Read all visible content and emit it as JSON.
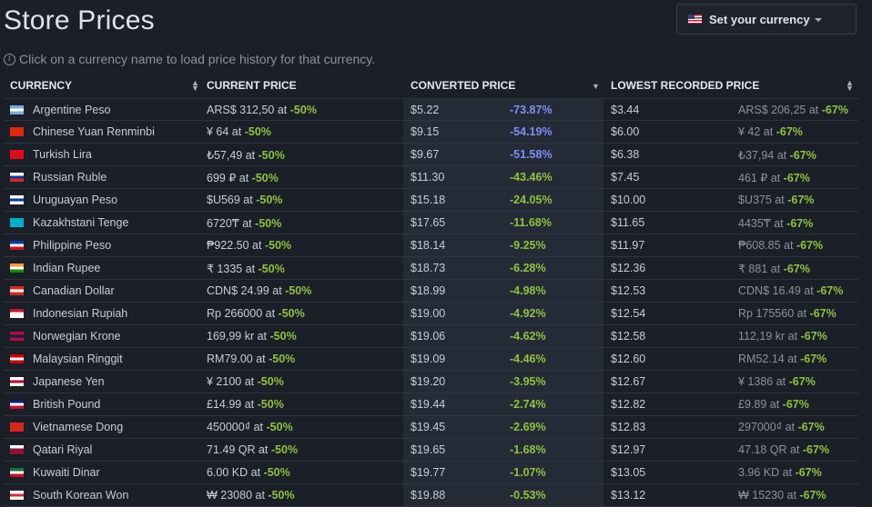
{
  "page": {
    "title": "Store Prices",
    "hint": "Click on a currency name to load price history for that currency."
  },
  "currency_button": {
    "label": "Set your currency",
    "flag": "us-flag-icon"
  },
  "table": {
    "headers": [
      "CURRENCY",
      "CURRENT PRICE",
      "CONVERTED PRICE",
      "LOWEST RECORDED PRICE"
    ],
    "rows": [
      {
        "currency": "Argentine Peso",
        "flag": "argentina-flag-icon",
        "flag_colors": [
          "#74acdf",
          "#ffffff",
          "#74acdf"
        ],
        "current": "ARS$ 312,50 at",
        "current_disc": "-50%",
        "converted": "$5.22",
        "pct": "-73.87%",
        "pct_color": "#7d8ff5",
        "lowest": "$3.44",
        "lowest_local": "ARS$ 206,25 at",
        "lowest_disc": "-67%"
      },
      {
        "currency": "Chinese Yuan Renminbi",
        "flag": "china-flag-icon",
        "flag_colors": [
          "#de2910",
          "#de2910",
          "#de2910"
        ],
        "current": "¥ 64 at",
        "current_disc": "-50%",
        "converted": "$9.15",
        "pct": "-54.19%",
        "pct_color": "#7d8ff5",
        "lowest": "$6.00",
        "lowest_local": "¥ 42 at",
        "lowest_disc": "-67%"
      },
      {
        "currency": "Turkish Lira",
        "flag": "turkey-flag-icon",
        "flag_colors": [
          "#e30a17",
          "#e30a17",
          "#e30a17"
        ],
        "current": "₺57,49 at",
        "current_disc": "-50%",
        "converted": "$9.67",
        "pct": "-51.58%",
        "pct_color": "#7d8ff5",
        "lowest": "$6.38",
        "lowest_local": "₺37,94 at",
        "lowest_disc": "-67%"
      },
      {
        "currency": "Russian Ruble",
        "flag": "russia-flag-icon",
        "flag_colors": [
          "#ffffff",
          "#0039a6",
          "#d52b1e"
        ],
        "current": "699 ₽ at",
        "current_disc": "-50%",
        "converted": "$11.30",
        "pct": "-43.46%",
        "pct_color": "#8fc241",
        "lowest": "$7.45",
        "lowest_local": "461 ₽ at",
        "lowest_disc": "-67%"
      },
      {
        "currency": "Uruguayan Peso",
        "flag": "uruguay-flag-icon",
        "flag_colors": [
          "#ffffff",
          "#0038a8",
          "#ffffff"
        ],
        "current": "$U569 at",
        "current_disc": "-50%",
        "converted": "$15.18",
        "pct": "-24.05%",
        "pct_color": "#8fc241",
        "lowest": "$10.00",
        "lowest_local": "$U375 at",
        "lowest_disc": "-67%"
      },
      {
        "currency": "Kazakhstani Tenge",
        "flag": "kazakhstan-flag-icon",
        "flag_colors": [
          "#00afca",
          "#00afca",
          "#00afca"
        ],
        "current": "6720₸ at",
        "current_disc": "-50%",
        "converted": "$17.65",
        "pct": "-11.68%",
        "pct_color": "#8fc241",
        "lowest": "$11.65",
        "lowest_local": "4435₸ at",
        "lowest_disc": "-67%"
      },
      {
        "currency": "Philippine Peso",
        "flag": "philippines-flag-icon",
        "flag_colors": [
          "#0038a8",
          "#ffffff",
          "#ce1126"
        ],
        "current": "₱922.50 at",
        "current_disc": "-50%",
        "converted": "$18.14",
        "pct": "-9.25%",
        "pct_color": "#8fc241",
        "lowest": "$11.97",
        "lowest_local": "₱608.85 at",
        "lowest_disc": "-67%"
      },
      {
        "currency": "Indian Rupee",
        "flag": "india-flag-icon",
        "flag_colors": [
          "#ff9933",
          "#ffffff",
          "#138808"
        ],
        "current": "₹ 1335 at",
        "current_disc": "-50%",
        "converted": "$18.73",
        "pct": "-6.28%",
        "pct_color": "#8fc241",
        "lowest": "$12.36",
        "lowest_local": "₹ 881 at",
        "lowest_disc": "-67%"
      },
      {
        "currency": "Canadian Dollar",
        "flag": "canada-flag-icon",
        "flag_colors": [
          "#d52b1e",
          "#ffffff",
          "#d52b1e"
        ],
        "current": "CDN$ 24.99 at",
        "current_disc": "-50%",
        "converted": "$18.99",
        "pct": "-4.98%",
        "pct_color": "#8fc241",
        "lowest": "$12.53",
        "lowest_local": "CDN$ 16.49 at",
        "lowest_disc": "-67%"
      },
      {
        "currency": "Indonesian Rupiah",
        "flag": "indonesia-flag-icon",
        "flag_colors": [
          "#ce1126",
          "#ffffff",
          "#ffffff"
        ],
        "current": "Rp 266000 at",
        "current_disc": "-50%",
        "converted": "$19.00",
        "pct": "-4.92%",
        "pct_color": "#8fc241",
        "lowest": "$12.54",
        "lowest_local": "Rp 175560 at",
        "lowest_disc": "-67%"
      },
      {
        "currency": "Norwegian Krone",
        "flag": "norway-flag-icon",
        "flag_colors": [
          "#ba0c2f",
          "#00205b",
          "#ba0c2f"
        ],
        "current": "169,99 kr at",
        "current_disc": "-50%",
        "converted": "$19.06",
        "pct": "-4.62%",
        "pct_color": "#8fc241",
        "lowest": "$12.58",
        "lowest_local": "112,19 kr at",
        "lowest_disc": "-67%"
      },
      {
        "currency": "Malaysian Ringgit",
        "flag": "malaysia-flag-icon",
        "flag_colors": [
          "#cc0001",
          "#ffffff",
          "#cc0001"
        ],
        "current": "RM79.00 at",
        "current_disc": "-50%",
        "converted": "$19.09",
        "pct": "-4.46%",
        "pct_color": "#8fc241",
        "lowest": "$12.60",
        "lowest_local": "RM52.14 at",
        "lowest_disc": "-67%"
      },
      {
        "currency": "Japanese Yen",
        "flag": "japan-flag-icon",
        "flag_colors": [
          "#ffffff",
          "#bc002d",
          "#ffffff"
        ],
        "current": "¥ 2100 at",
        "current_disc": "-50%",
        "converted": "$19.20",
        "pct": "-3.95%",
        "pct_color": "#8fc241",
        "lowest": "$12.67",
        "lowest_local": "¥ 1386 at",
        "lowest_disc": "-67%"
      },
      {
        "currency": "British Pound",
        "flag": "uk-flag-icon",
        "flag_colors": [
          "#012169",
          "#ffffff",
          "#c8102e"
        ],
        "current": "£14.99 at",
        "current_disc": "-50%",
        "converted": "$19.44",
        "pct": "-2.74%",
        "pct_color": "#8fc241",
        "lowest": "$12.82",
        "lowest_local": "£9.89 at",
        "lowest_disc": "-67%"
      },
      {
        "currency": "Vietnamese Dong",
        "flag": "vietnam-flag-icon",
        "flag_colors": [
          "#da251d",
          "#da251d",
          "#da251d"
        ],
        "current": "450000₫ at",
        "current_disc": "-50%",
        "converted": "$19.45",
        "pct": "-2.69%",
        "pct_color": "#8fc241",
        "lowest": "$12.83",
        "lowest_local": "297000₫ at",
        "lowest_disc": "-67%"
      },
      {
        "currency": "Qatari Riyal",
        "flag": "qatar-flag-icon",
        "flag_colors": [
          "#ffffff",
          "#8a1538",
          "#8a1538"
        ],
        "current": "71.49 QR at",
        "current_disc": "-50%",
        "converted": "$19.65",
        "pct": "-1.68%",
        "pct_color": "#8fc241",
        "lowest": "$12.97",
        "lowest_local": "47.18 QR at",
        "lowest_disc": "-67%"
      },
      {
        "currency": "Kuwaiti Dinar",
        "flag": "kuwait-flag-icon",
        "flag_colors": [
          "#007a3d",
          "#ffffff",
          "#ce1126"
        ],
        "current": "6.00 KD at",
        "current_disc": "-50%",
        "converted": "$19.77",
        "pct": "-1.07%",
        "pct_color": "#8fc241",
        "lowest": "$13.05",
        "lowest_local": "3.96 KD at",
        "lowest_disc": "-67%"
      },
      {
        "currency": "South Korean Won",
        "flag": "south-korea-flag-icon",
        "flag_colors": [
          "#ffffff",
          "#cd2e3a",
          "#ffffff"
        ],
        "current": "₩ 23080 at",
        "current_disc": "-50%",
        "converted": "$19.88",
        "pct": "-0.53%",
        "pct_color": "#8fc241",
        "lowest": "$13.12",
        "lowest_local": "₩ 15230 at",
        "lowest_disc": "-67%"
      }
    ]
  }
}
